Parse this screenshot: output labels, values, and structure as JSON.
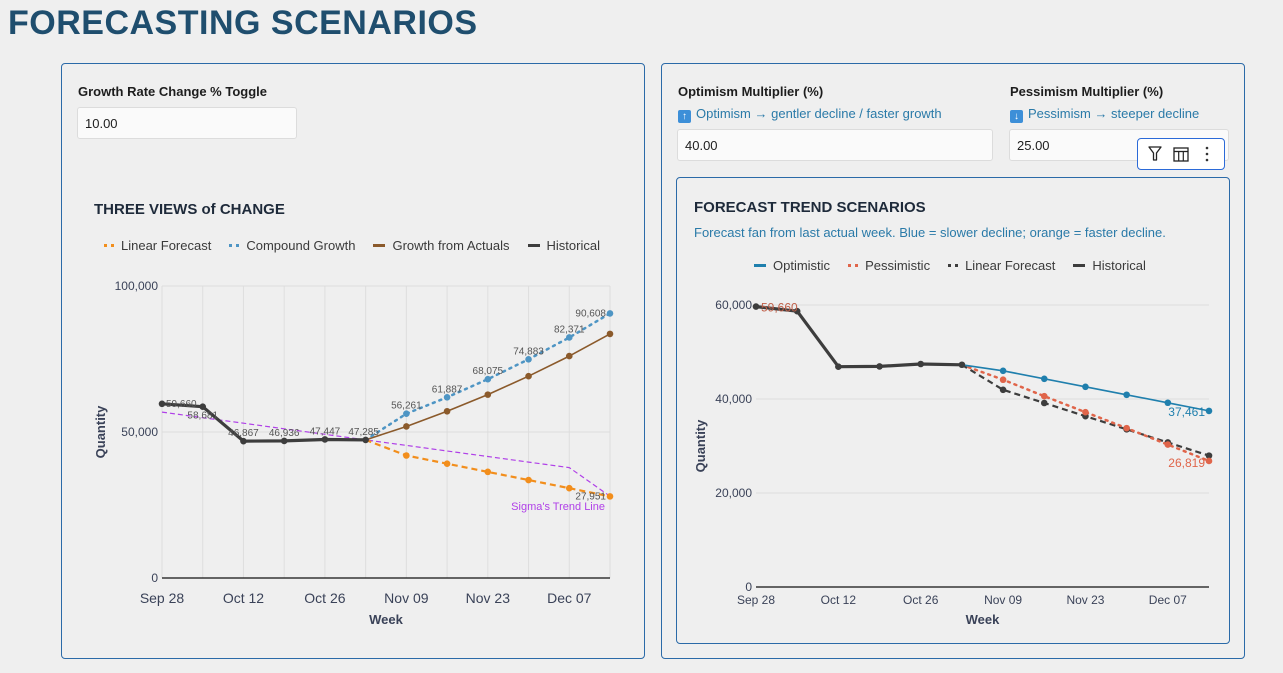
{
  "page": {
    "title": "FORECASTING SCENARIOS"
  },
  "left_panel": {
    "control": {
      "label": "Growth Rate Change % Toggle",
      "value": "10.00"
    }
  },
  "right_panel": {
    "optimism": {
      "label": "Optimism Multiplier (%)",
      "hint_icon": "up-arrow-emoji",
      "hint": "Optimism → gentler decline / faster growth",
      "value": "40.00"
    },
    "pessimism": {
      "label": "Pessimism Multiplier (%)",
      "hint_icon": "down-arrow-emoji",
      "hint": "Pessimism → steeper decline",
      "value": "25.00"
    },
    "toolbar": {
      "icons": [
        "filter-icon",
        "table-icon",
        "more-vertical-icon"
      ]
    }
  },
  "chart_data": [
    {
      "type": "line",
      "title": "THREE VIEWS of CHANGE",
      "xlabel": "Week",
      "ylabel": "Quantity",
      "ylim": [
        0,
        100000
      ],
      "yticks": [
        "0",
        "50,000",
        "100,000"
      ],
      "x": [
        "Sep 28",
        "Oct 05",
        "Oct 12",
        "Oct 19",
        "Oct 26",
        "Nov 02",
        "Nov 09",
        "Nov 16",
        "Nov 23",
        "Nov 30",
        "Dec 07",
        "Dec 14"
      ],
      "xtick_labels": [
        "Sep 28",
        "Oct 12",
        "Oct 26",
        "Nov 09",
        "Nov 23",
        "Dec 07"
      ],
      "grid": true,
      "legend_position": "top",
      "annotation": "Sigma's Trend Line",
      "series": [
        {
          "name": "Linear Forecast",
          "color": "#f28e1c",
          "style": "dashed",
          "values": [
            null,
            null,
            null,
            null,
            null,
            47285,
            41950,
            39150,
            36350,
            33550,
            30750,
            27951
          ],
          "labels": [
            null,
            null,
            null,
            null,
            null,
            null,
            null,
            null,
            null,
            null,
            null,
            "27,951"
          ]
        },
        {
          "name": "Compound Growth",
          "color": "#4e95c4",
          "style": "dotted",
          "values": [
            null,
            null,
            null,
            null,
            null,
            47285,
            56261,
            61887,
            68075,
            74883,
            82371,
            90608
          ],
          "labels": [
            null,
            null,
            null,
            null,
            null,
            null,
            "56,261",
            "61,887",
            "68,075",
            "74,883",
            "82,371",
            "90,608"
          ]
        },
        {
          "name": "Growth from Actuals",
          "color": "#8b5a2b",
          "style": "solid",
          "values": [
            null,
            null,
            null,
            null,
            null,
            47285,
            51900,
            57100,
            62800,
            69100,
            76000,
            83600
          ],
          "labels": []
        },
        {
          "name": "Historical",
          "color": "#3d3d3d",
          "style": "solid-thick",
          "values": [
            59660,
            58681,
            46867,
            46936,
            47447,
            47285,
            null,
            null,
            null,
            null,
            null,
            null
          ],
          "labels": [
            "59,660",
            "58,681",
            "46,867",
            "46,936",
            "47,447",
            "47,285",
            null,
            null,
            null,
            null,
            null,
            null
          ]
        },
        {
          "name": "Sigma's Trend Line",
          "color": "#b040e8",
          "style": "dashed-thin",
          "in_legend": false,
          "values": [
            56800,
            54900,
            53000,
            51100,
            49200,
            47300,
            45400,
            43500,
            41600,
            39700,
            37800,
            28000
          ],
          "labels": []
        }
      ]
    },
    {
      "type": "line",
      "title": "FORECAST TREND SCENARIOS",
      "subtitle": "Forecast fan from last actual week. Blue = slower decline; orange = faster decline.",
      "xlabel": "Week",
      "ylabel": "Quantity",
      "ylim": [
        0,
        60000
      ],
      "yticks": [
        "0",
        "20,000",
        "40,000",
        "60,000"
      ],
      "x": [
        "Sep 28",
        "Oct 05",
        "Oct 12",
        "Oct 19",
        "Oct 26",
        "Nov 02",
        "Nov 09",
        "Nov 16",
        "Nov 23",
        "Nov 30",
        "Dec 07",
        "Dec 14"
      ],
      "xtick_labels": [
        "Sep 28",
        "Oct 12",
        "Oct 26",
        "Nov 09",
        "Nov 23",
        "Dec 07"
      ],
      "grid": true,
      "legend_position": "top",
      "series": [
        {
          "name": "Optimistic",
          "color": "#1f7fad",
          "style": "solid",
          "values": [
            null,
            null,
            null,
            null,
            null,
            47285,
            46000,
            44300,
            42600,
            40900,
            39200,
            37461
          ],
          "labels": [
            null,
            null,
            null,
            null,
            null,
            null,
            null,
            null,
            null,
            null,
            null,
            "37,461"
          ]
        },
        {
          "name": "Pessimistic",
          "color": "#e0654a",
          "style": "dotted",
          "values": [
            null,
            null,
            null,
            null,
            null,
            47285,
            44100,
            40600,
            37200,
            33800,
            30300,
            26819
          ],
          "labels": [
            null,
            null,
            null,
            null,
            null,
            null,
            null,
            null,
            null,
            null,
            null,
            "26,819"
          ]
        },
        {
          "name": "Linear Forecast",
          "color": "#3d3d3d",
          "style": "dashed",
          "values": [
            null,
            null,
            null,
            null,
            null,
            47285,
            41950,
            39150,
            36350,
            33550,
            30750,
            27951
          ],
          "labels": []
        },
        {
          "name": "Historical",
          "color": "#3d3d3d",
          "style": "solid-thick",
          "values": [
            59660,
            58681,
            46867,
            46936,
            47447,
            47285,
            null,
            null,
            null,
            null,
            null,
            null
          ],
          "labels": [
            "59,660",
            null,
            null,
            null,
            null,
            null,
            null,
            null,
            null,
            null,
            null,
            null
          ]
        }
      ]
    }
  ]
}
